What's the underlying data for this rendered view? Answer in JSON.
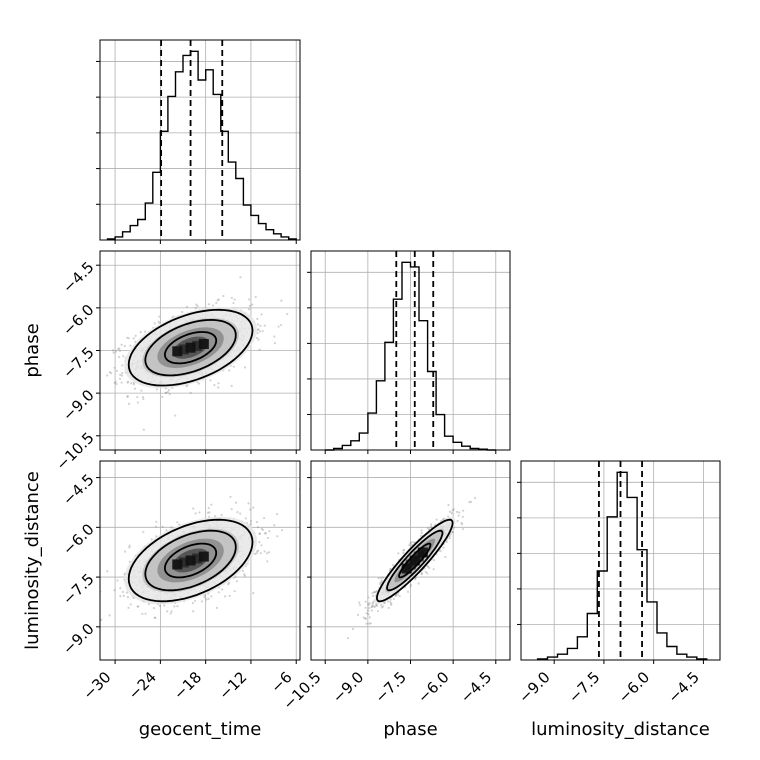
{
  "chart_data": {
    "type": "corner",
    "parameters": [
      "geocent_time",
      "phase",
      "luminosity_distance"
    ],
    "axis_labels": {
      "x": [
        "geocent_time",
        "phase",
        "luminosity_distance"
      ],
      "y": [
        "phase",
        "luminosity_distance"
      ]
    },
    "ranges": {
      "geocent_time": [
        -32,
        -5.5
      ],
      "phase": [
        -11.0,
        -4.0
      ],
      "luminosity_distance": [
        -10.0,
        -4.0
      ]
    },
    "ticks": {
      "geocent_time": [
        -30,
        -24,
        -18,
        -12,
        -6
      ],
      "phase": [
        -10.5,
        -9.0,
        -7.5,
        -6.0,
        -4.5
      ],
      "luminosity_distance": [
        -9.0,
        -7.5,
        -6.0,
        -4.5
      ]
    },
    "tick_labels": {
      "geocent_time": [
        "−30",
        "−24",
        "−18",
        "−12",
        "−6"
      ],
      "phase": [
        "−10.5",
        "−9.0",
        "−7.5",
        "−6.0",
        "−4.5"
      ],
      "luminosity_distance": [
        "−9.0",
        "−7.5",
        "−6.0",
        "−4.5"
      ]
    },
    "y_tick_labels": {
      "phase": [
        "−4.5",
        "−6.0",
        "−7.5",
        "−9.0",
        "−10.5"
      ],
      "luminosity_distance": [
        "−4.5",
        "−6.0",
        "−7.5",
        "−9.0"
      ]
    },
    "y_ticks": {
      "phase": [
        -4.5,
        -6.0,
        -7.5,
        -9.0,
        -10.5
      ],
      "luminosity_distance": [
        -4.5,
        -6.0,
        -7.5,
        -9.0
      ]
    },
    "histograms": {
      "geocent_time": {
        "edges": [
          -31,
          -30,
          -29,
          -28,
          -27,
          -26,
          -25,
          -24,
          -23,
          -22,
          -21,
          -20,
          -19,
          -18,
          -17,
          -16,
          -15,
          -14,
          -13,
          -12,
          -11,
          -10,
          -9,
          -8,
          -7,
          -6
        ],
        "counts": [
          0.5,
          1.5,
          4,
          7,
          10,
          18,
          33,
          53,
          70,
          82,
          90,
          92,
          78,
          83,
          71,
          53,
          38,
          30,
          17,
          12,
          8,
          5,
          3,
          1.5,
          0.5
        ]
      },
      "phase": {
        "edges": [
          -10.5,
          -10.2,
          -9.9,
          -9.6,
          -9.3,
          -9.0,
          -8.7,
          -8.4,
          -8.1,
          -7.8,
          -7.5,
          -7.2,
          -6.9,
          -6.6,
          -6.3,
          -6.0,
          -5.7,
          -5.4,
          -5.1,
          -4.8,
          -4.5
        ],
        "counts": [
          0,
          1,
          3,
          6,
          11,
          24,
          45,
          70,
          98,
          122,
          119,
          84,
          51,
          23,
          9,
          5,
          2.5,
          1,
          0.5,
          0
        ]
      },
      "luminosity_distance": {
        "edges": [
          -9.5,
          -9.2,
          -8.9,
          -8.6,
          -8.3,
          -8.0,
          -7.7,
          -7.4,
          -7.1,
          -6.8,
          -6.5,
          -6.2,
          -5.9,
          -5.6,
          -5.3,
          -5.0,
          -4.7,
          -4.4
        ],
        "counts": [
          0.5,
          1.5,
          3,
          6,
          12,
          24,
          46,
          74,
          97,
          84,
          57,
          30,
          14,
          7,
          3,
          1.5,
          0.5
        ]
      }
    },
    "quantiles": {
      "geocent_time": [
        -23.9,
        -20.0,
        -15.8
      ],
      "phase": [
        -8.0,
        -7.35,
        -6.7
      ],
      "luminosity_distance": [
        -7.65,
        -7.0,
        -6.35
      ]
    },
    "pairs": [
      {
        "x": "geocent_time",
        "y": "phase",
        "mean": [
          -20.0,
          -7.4
        ],
        "std": [
          4.0,
          0.65
        ],
        "corr": 0.45
      },
      {
        "x": "geocent_time",
        "y": "luminosity_distance",
        "mean": [
          -20.0,
          -7.0
        ],
        "std": [
          4.0,
          0.6
        ],
        "corr": 0.45
      },
      {
        "x": "phase",
        "y": "luminosity_distance",
        "mean": [
          -7.35,
          -7.0
        ],
        "std": [
          0.65,
          0.6
        ],
        "corr": 0.92
      }
    ],
    "contour_levels_sigma": [
      0.5,
      1.0,
      1.5,
      2.0
    ],
    "quantile_line_style": "dashed",
    "grid": true,
    "colors": {
      "line": "#000000",
      "grid": "#b0b0b0",
      "points": "#7f7f7f",
      "density": "#000000"
    }
  }
}
